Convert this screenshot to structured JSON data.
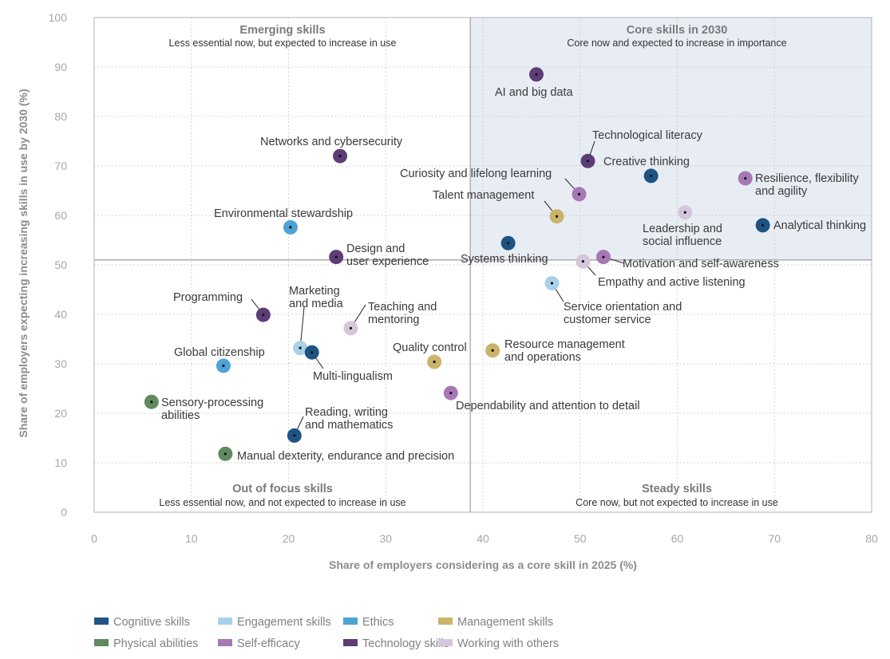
{
  "chart_data": {
    "type": "scatter",
    "xlabel": "Share of employers considering as a core skill in 2025 (%)",
    "ylabel": "Share of employers expecting increasing skills in use by 2030 (%)",
    "xlim": [
      0,
      80
    ],
    "ylim": [
      0,
      100
    ],
    "xticks": [
      "0",
      "10",
      "20",
      "30",
      "40",
      "50",
      "60",
      "70",
      "80"
    ],
    "yticks": [
      "0",
      "10",
      "20",
      "30",
      "40",
      "50",
      "60",
      "70",
      "80",
      "90",
      "100"
    ],
    "grid": true,
    "legend_position": "bottom",
    "divider": {
      "x": 38.7,
      "y": 51
    },
    "quadrants": [
      {
        "title": "Emerging skills",
        "subtitle": "Less essential now, but expected to increase in use"
      },
      {
        "title": "Core skills in 2030",
        "subtitle": "Core now and expected to increase in importance"
      },
      {
        "title": "Out of focus skills",
        "subtitle": "Less essential now, and not expected to increase in use"
      },
      {
        "title": "Steady skills",
        "subtitle": "Core now, but not expected to increase in use"
      }
    ],
    "categories": [
      {
        "name": "Cognitive skills",
        "color": "#1e5483"
      },
      {
        "name": "Engagement skills",
        "color": "#a9d1ea"
      },
      {
        "name": "Ethics",
        "color": "#4ea3d4"
      },
      {
        "name": "Management skills",
        "color": "#c9b46a"
      },
      {
        "name": "Physical abilities",
        "color": "#5f8a5f"
      },
      {
        "name": "Self-efficacy",
        "color": "#a678b6"
      },
      {
        "name": "Technology skills",
        "color": "#5c3d75"
      },
      {
        "name": "Working with others",
        "color": "#d4c6dc"
      }
    ],
    "points": [
      {
        "label": "AI and big data",
        "category": "Technology skills",
        "x": 45.5,
        "y": 88.5
      },
      {
        "label": "Networks and cybersecurity",
        "category": "Technology skills",
        "x": 25.3,
        "y": 72
      },
      {
        "label": "Technological literacy",
        "category": "Technology skills",
        "x": 50.8,
        "y": 71
      },
      {
        "label": "Creative thinking",
        "category": "Cognitive skills",
        "x": 57.3,
        "y": 68
      },
      {
        "label": "Resilience, flexibility and agility",
        "category": "Self-efficacy",
        "x": 67,
        "y": 67.5
      },
      {
        "label": "Curiosity and lifelong learning",
        "category": "Self-efficacy",
        "x": 49.9,
        "y": 64.3
      },
      {
        "label": "Talent management",
        "category": "Management skills",
        "x": 47.6,
        "y": 59.8
      },
      {
        "label": "Leadership and social influence",
        "category": "Working with others",
        "x": 60.8,
        "y": 60.6
      },
      {
        "label": "Analytical thinking",
        "category": "Cognitive skills",
        "x": 68.8,
        "y": 58
      },
      {
        "label": "Environmental stewardship",
        "category": "Ethics",
        "x": 20.2,
        "y": 57.6
      },
      {
        "label": "Systems thinking",
        "category": "Cognitive skills",
        "x": 42.6,
        "y": 54.4
      },
      {
        "label": "Design and user experience",
        "category": "Technology skills",
        "x": 24.9,
        "y": 51.6
      },
      {
        "label": "Motivation and self-awareness",
        "category": "Self-efficacy",
        "x": 52.4,
        "y": 51.6
      },
      {
        "label": "Empathy and active listening",
        "category": "Working with others",
        "x": 50.3,
        "y": 50.7
      },
      {
        "label": "Service orientation and customer service",
        "category": "Engagement skills",
        "x": 47.1,
        "y": 46.3
      },
      {
        "label": "Programming",
        "category": "Technology skills",
        "x": 17.4,
        "y": 39.9
      },
      {
        "label": "Teaching and mentoring",
        "category": "Working with others",
        "x": 26.4,
        "y": 37.2
      },
      {
        "label": "Marketing and media",
        "category": "Engagement skills",
        "x": 21.2,
        "y": 33.2
      },
      {
        "label": "Multi-lingualism",
        "category": "Cognitive skills",
        "x": 22.4,
        "y": 32.3
      },
      {
        "label": "Quality control",
        "category": "Management skills",
        "x": 35,
        "y": 30.4
      },
      {
        "label": "Resource management and operations",
        "category": "Management skills",
        "x": 41,
        "y": 32.7
      },
      {
        "label": "Global citizenship",
        "category": "Ethics",
        "x": 13.3,
        "y": 29.6
      },
      {
        "label": "Dependability and attention to detail",
        "category": "Self-efficacy",
        "x": 36.7,
        "y": 24.1
      },
      {
        "label": "Sensory-processing abilities",
        "category": "Physical abilities",
        "x": 5.9,
        "y": 22.3
      },
      {
        "label": "Reading, writing and mathematics",
        "category": "Cognitive skills",
        "x": 20.6,
        "y": 15.5
      },
      {
        "label": "Manual dexterity, endurance and precision",
        "category": "Physical abilities",
        "x": 13.5,
        "y": 11.8
      }
    ]
  }
}
